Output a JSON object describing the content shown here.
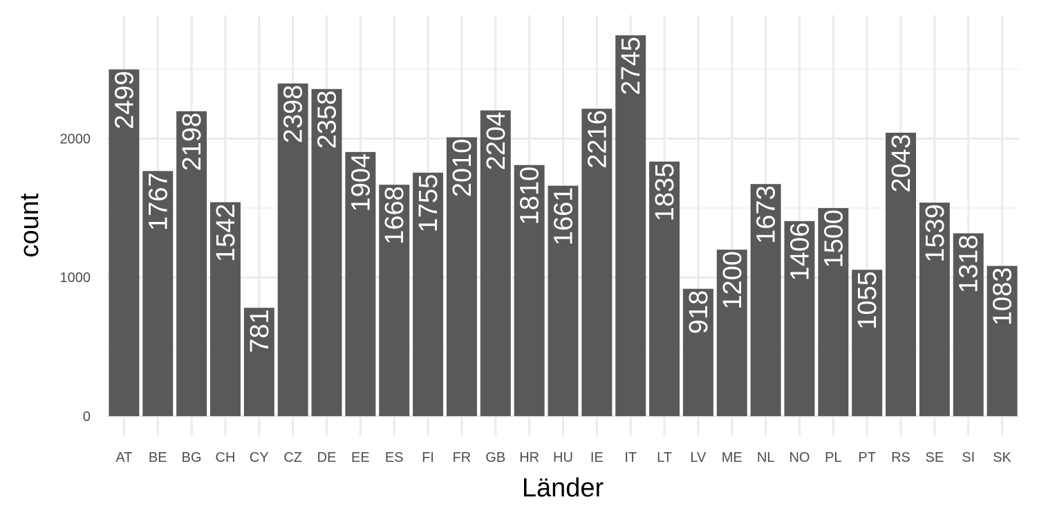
{
  "chart_data": {
    "type": "bar",
    "xlabel": "Länder",
    "ylabel": "count",
    "categories": [
      "AT",
      "BE",
      "BG",
      "CH",
      "CY",
      "CZ",
      "DE",
      "EE",
      "ES",
      "FI",
      "FR",
      "GB",
      "HR",
      "HU",
      "IE",
      "IT",
      "LT",
      "LV",
      "ME",
      "NL",
      "NO",
      "PL",
      "PT",
      "RS",
      "SE",
      "SI",
      "SK"
    ],
    "values": [
      2499,
      1767,
      2198,
      1542,
      781,
      2398,
      2358,
      1904,
      1668,
      1755,
      2010,
      2204,
      1810,
      1661,
      2216,
      2745,
      1835,
      918,
      1200,
      1673,
      1406,
      1500,
      1055,
      2043,
      1539,
      1318,
      1083
    ],
    "value_labels": [
      "2499",
      "1767",
      "2198",
      "1542",
      "781",
      "2398",
      "2358",
      "1904",
      "1668",
      "1755",
      "2010",
      "2204",
      "1810",
      "1661",
      "2216",
      "2745",
      "1835",
      "918",
      "1200",
      "1673",
      "1406",
      "1500",
      "1055",
      "2043",
      "1539",
      "1318",
      "1083"
    ],
    "y_ticks": [
      0,
      1000,
      2000
    ],
    "y_tick_labels": [
      "0",
      "1000",
      "2000"
    ],
    "ylim": [
      -140,
      2890
    ],
    "grid": true,
    "legend": "none",
    "bar_color": "#595959",
    "grid_major_color": "#ebebeb",
    "grid_minor_color": "#f3f3f3",
    "theme": "minimal"
  }
}
